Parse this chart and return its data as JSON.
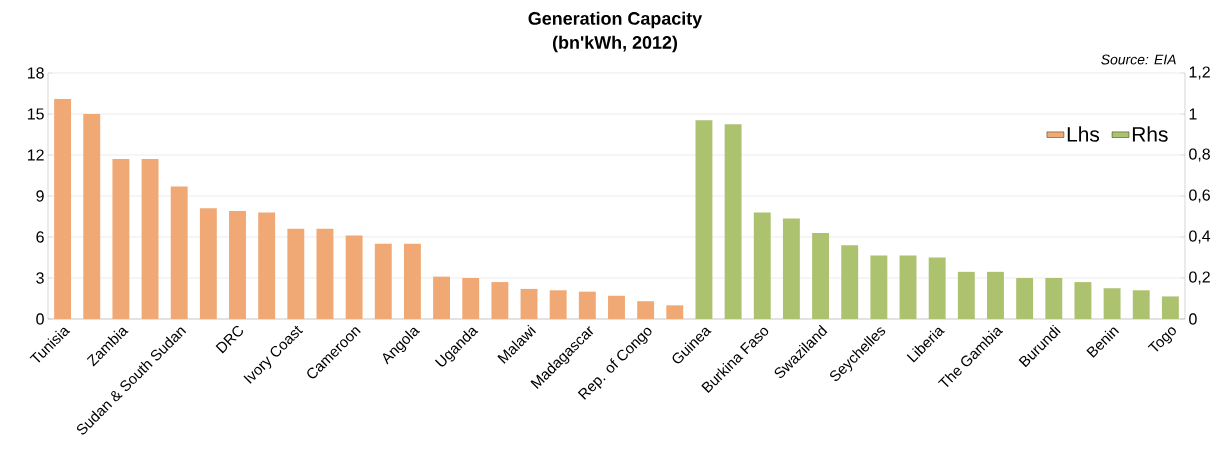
{
  "chart_data": {
    "type": "bar",
    "title": "Generation Capacity",
    "subtitle": "(bn'kWh, 2012)",
    "annotations": [
      "Source: EIA"
    ],
    "categories": [
      "Tunisia",
      null,
      "Zambia",
      null,
      "Sudan & South Sudan",
      null,
      "DRC",
      null,
      "Ivory Coast",
      null,
      "Cameroon",
      null,
      "Angola",
      null,
      "Uganda",
      null,
      "Malawi",
      null,
      "Madagascar",
      null,
      "Rep. of Congo",
      null,
      "Guinea",
      null,
      "Burkina Faso",
      null,
      "Swaziland",
      null,
      "Seychelles",
      null,
      "Liberia",
      null,
      "The Gambia",
      null,
      "Burundi",
      null,
      "Benin",
      null,
      "Togo"
    ],
    "series": [
      {
        "name": "Lhs",
        "color": "#f0a875",
        "values": [
          16.1,
          15.0,
          11.7,
          11.7,
          9.7,
          8.1,
          7.9,
          7.8,
          6.6,
          6.6,
          6.1,
          5.5,
          5.5,
          3.1,
          3.0,
          2.7,
          2.2,
          2.1,
          2.0,
          1.7,
          1.3,
          1.0,
          null,
          null,
          null,
          null,
          null,
          null,
          null,
          null,
          null,
          null,
          null,
          null,
          null,
          null,
          null,
          null,
          null
        ]
      },
      {
        "name": "Rhs",
        "color": "#adc26f",
        "axis": "y2",
        "values": [
          null,
          null,
          null,
          null,
          null,
          null,
          null,
          null,
          null,
          null,
          null,
          null,
          null,
          null,
          null,
          null,
          null,
          null,
          null,
          null,
          null,
          null,
          0.97,
          0.95,
          0.52,
          0.49,
          0.42,
          0.36,
          0.31,
          0.31,
          0.3,
          0.23,
          0.23,
          0.2,
          0.2,
          0.18,
          0.15,
          0.14,
          0.11
        ]
      }
    ],
    "ylim": [
      0,
      18
    ],
    "yticks": [
      0,
      3,
      6,
      9,
      12,
      15,
      18
    ],
    "y2lim": [
      0,
      1.2
    ],
    "y2ticks": [
      0,
      {
        "value": 0.2,
        "label": "0,2"
      },
      {
        "value": 0.4,
        "label": "0,4"
      },
      {
        "value": 0.6,
        "label": "0,6"
      },
      {
        "value": 0.8,
        "label": "0,8"
      },
      1,
      {
        "value": 1.2,
        "label": "1,2"
      }
    ],
    "grid": "y",
    "legend": "top right"
  }
}
